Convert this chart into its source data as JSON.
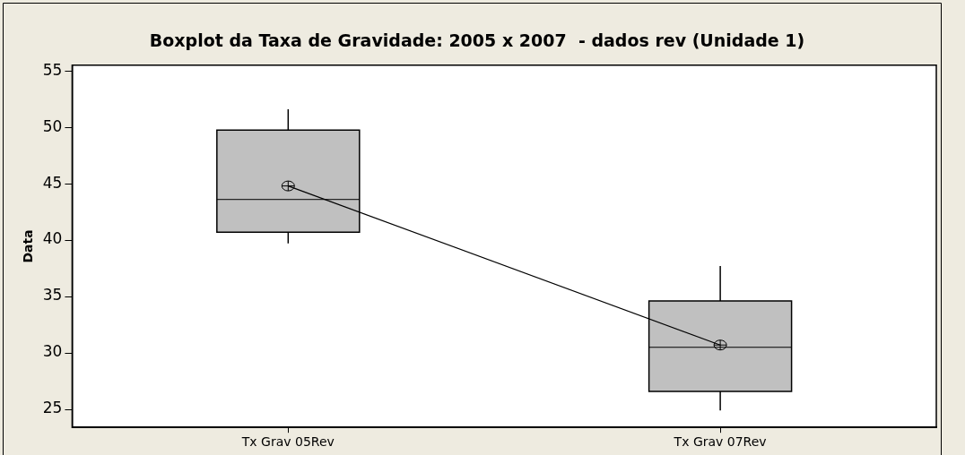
{
  "chart_data": {
    "type": "box",
    "title": "Boxplot da Taxa de Gravidade: 2005 x 2007  - dados rev (Unidade 1)",
    "ylabel": "Data",
    "categories": [
      "Tx Grav 05Rev",
      "Tx Grav 07Rev"
    ],
    "boxes": [
      {
        "low": 39.7,
        "q1": 40.7,
        "median": 43.6,
        "q3": 49.75,
        "high": 51.6,
        "mean": 44.8
      },
      {
        "low": 24.9,
        "q1": 26.6,
        "median": 30.5,
        "q3": 34.6,
        "high": 37.7,
        "mean": 30.7
      }
    ],
    "color": "#c0c0c0",
    "series": [
      {
        "type": "line",
        "color": "#000000",
        "values": [
          44.8,
          30.7
        ]
      }
    ],
    "marker": "none",
    "ylim": [
      23.4,
      55.5
    ],
    "yticks": [
      25,
      30,
      35,
      40,
      45,
      50,
      55
    ],
    "grid": false,
    "legend": false
  }
}
